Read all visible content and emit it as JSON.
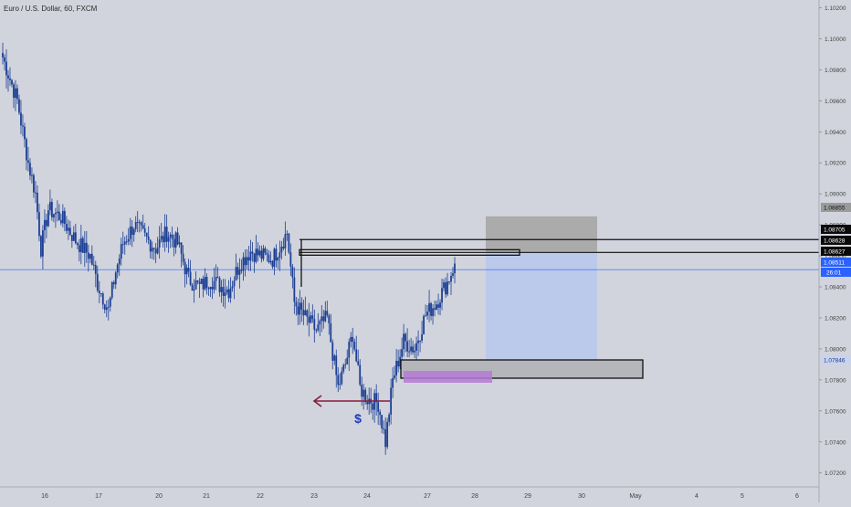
{
  "header": {
    "title": "Euro / U.S. Dollar, 60, FXCM"
  },
  "colors": {
    "background": "#d1d4dc",
    "candle": "#1c3f95",
    "last_price": "#2962ff",
    "stop_zone": "#a6a6a6",
    "target_zone": "#b9c8ea",
    "demand_zone": "#b4b6bc",
    "imbalance": "#b57ad6",
    "arrow": "#8b1a3a",
    "dollar": "#1a3cc0"
  },
  "chart_data": {
    "type": "candlestick",
    "symbol": "EURUSD",
    "timeframe": "60",
    "ylim": [
      1.0711,
      1.1025
    ],
    "x_ticks": [
      "16",
      "17",
      "20",
      "21",
      "22",
      "23",
      "24",
      "27",
      "28",
      "29",
      "30",
      "May",
      "4",
      "5",
      "6"
    ],
    "y_ticks": [
      "1.10200",
      "1.10000",
      "1.09800",
      "1.09600",
      "1.09400",
      "1.09200",
      "1.09000",
      "1.08800",
      "1.08600",
      "1.08400",
      "1.08200",
      "1.08000",
      "1.07800",
      "1.07600",
      "1.07400",
      "1.07200"
    ],
    "price_tags": [
      {
        "value": 1.08855,
        "label": "1.08855",
        "style": "gray"
      },
      {
        "value": 1.08705,
        "label": "1.08705",
        "style": "dark"
      },
      {
        "value": 1.08628,
        "label": "1.08628",
        "style": "dark"
      },
      {
        "value": 1.08627,
        "label": "1.08627",
        "style": "dark"
      },
      {
        "value": 1.08511,
        "label": "1.08511",
        "style": "blue",
        "countdown": "26:01"
      },
      {
        "value": 1.07846,
        "label": "1.07846",
        "style": "light"
      }
    ],
    "last_price": 1.08511,
    "countdown": "26:01",
    "annotations": {
      "dollar_label": "$",
      "position": {
        "entry": 1.07846,
        "stop": 1.08855,
        "target": 1.07846,
        "entry_level": 1.08627
      }
    },
    "key_points": [
      {
        "i": 0,
        "price": 1.0988
      },
      {
        "i": 8,
        "price": 1.096
      },
      {
        "i": 14,
        "price": 1.092
      },
      {
        "i": 18,
        "price": 1.09
      },
      {
        "i": 21,
        "price": 1.0865
      },
      {
        "i": 25,
        "price": 1.089
      },
      {
        "i": 32,
        "price": 1.0885
      },
      {
        "i": 40,
        "price": 1.087
      },
      {
        "i": 48,
        "price": 1.086
      },
      {
        "i": 52,
        "price": 1.0842
      },
      {
        "i": 58,
        "price": 1.0825
      },
      {
        "i": 62,
        "price": 1.085
      },
      {
        "i": 66,
        "price": 1.0868
      },
      {
        "i": 72,
        "price": 1.088
      },
      {
        "i": 78,
        "price": 1.0872
      },
      {
        "i": 84,
        "price": 1.0865
      },
      {
        "i": 90,
        "price": 1.0875
      },
      {
        "i": 96,
        "price": 1.0868
      },
      {
        "i": 102,
        "price": 1.0845
      },
      {
        "i": 108,
        "price": 1.084
      },
      {
        "i": 114,
        "price": 1.0845
      },
      {
        "i": 120,
        "price": 1.084
      },
      {
        "i": 124,
        "price": 1.0838
      },
      {
        "i": 130,
        "price": 1.0855
      },
      {
        "i": 136,
        "price": 1.0863
      },
      {
        "i": 142,
        "price": 1.086
      },
      {
        "i": 148,
        "price": 1.0858
      },
      {
        "i": 152,
        "price": 1.0866
      },
      {
        "i": 156,
        "price": 1.0875
      },
      {
        "i": 160,
        "price": 1.083
      },
      {
        "i": 166,
        "price": 1.082
      },
      {
        "i": 172,
        "price": 1.0812
      },
      {
        "i": 178,
        "price": 1.082
      },
      {
        "i": 184,
        "price": 1.0775
      },
      {
        "i": 188,
        "price": 1.079
      },
      {
        "i": 192,
        "price": 1.081
      },
      {
        "i": 196,
        "price": 1.0775
      },
      {
        "i": 200,
        "price": 1.0768
      },
      {
        "i": 206,
        "price": 1.0765
      },
      {
        "i": 210,
        "price": 1.074
      },
      {
        "i": 214,
        "price": 1.078
      },
      {
        "i": 220,
        "price": 1.0805
      },
      {
        "i": 226,
        "price": 1.08
      },
      {
        "i": 232,
        "price": 1.0822
      },
      {
        "i": 238,
        "price": 1.083
      },
      {
        "i": 244,
        "price": 1.0843
      },
      {
        "i": 248,
        "price": 1.0855
      }
    ]
  }
}
